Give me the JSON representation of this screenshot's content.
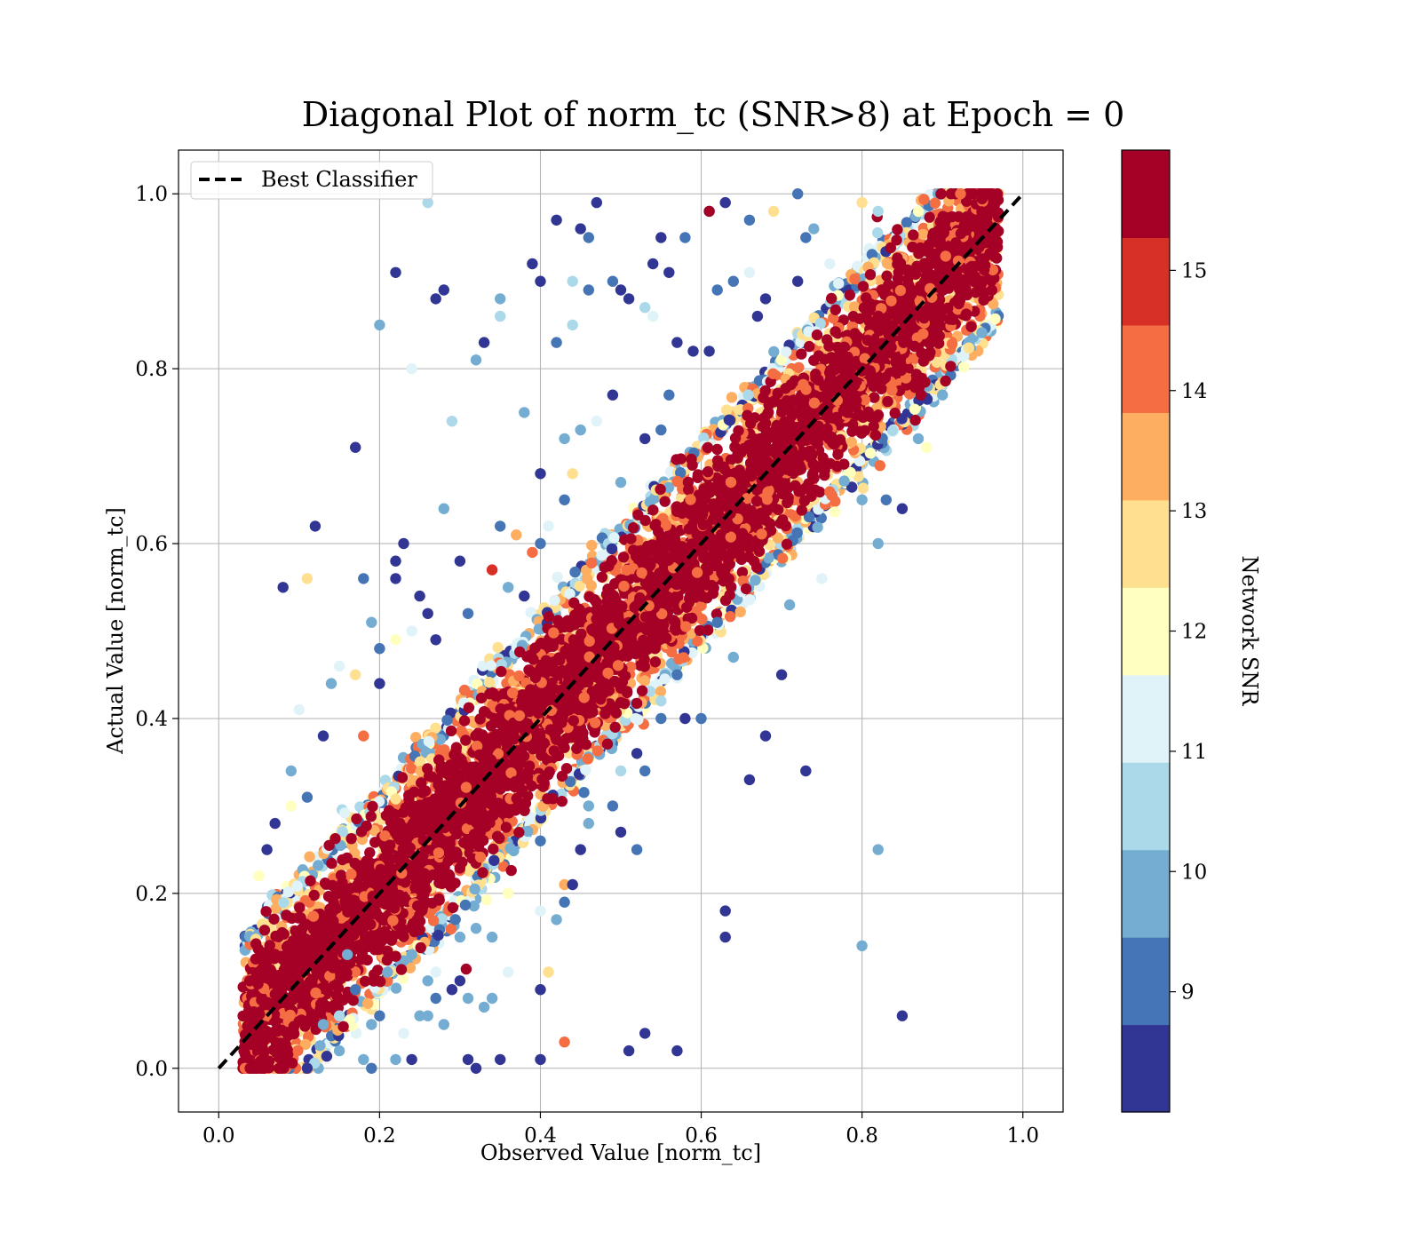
{
  "chart_data": {
    "type": "scatter",
    "title": "Diagonal Plot of norm_tc (SNR>8) at Epoch = 0",
    "xlabel": "Observed Value [norm_tc]",
    "ylabel": "Actual Value [norm_tc]",
    "xlim": [
      -0.05,
      1.05
    ],
    "ylim": [
      -0.05,
      1.05
    ],
    "x_ticks": [
      "0.0",
      "0.2",
      "0.4",
      "0.6",
      "0.8",
      "1.0"
    ],
    "y_ticks": [
      "0.0",
      "0.2",
      "0.4",
      "0.6",
      "0.8",
      "1.0"
    ],
    "x_tick_values": [
      0.0,
      0.2,
      0.4,
      0.6,
      0.8,
      1.0
    ],
    "y_tick_values": [
      0.0,
      0.2,
      0.4,
      0.6,
      0.8,
      1.0
    ],
    "grid": true,
    "legend": {
      "placement": "top-left",
      "entries": [
        "Best Classifier"
      ]
    },
    "reference_line": {
      "name": "Best Classifier",
      "x": [
        0.0,
        1.0
      ],
      "y": [
        0.0,
        1.0
      ],
      "style": "dashed",
      "color": "#000000"
    },
    "colorbar": {
      "label": "Network SNR",
      "range": [
        8,
        16
      ],
      "tick_values": [
        9,
        10,
        11,
        12,
        13,
        14,
        15
      ],
      "tick_labels": [
        "9",
        "10",
        "11",
        "12",
        "13",
        "14",
        "15"
      ],
      "colors": [
        "#313695",
        "#4575b4",
        "#74add1",
        "#abd9e9",
        "#e0f3f8",
        "#ffffbf",
        "#fee090",
        "#fdae61",
        "#f46d43",
        "#d73027",
        "#a50026"
      ]
    },
    "dense_band": {
      "x_range": [
        0.03,
        0.97
      ],
      "y_offset_halfwidth": 0.09,
      "dominant_snr": 15.5
    },
    "points": [
      [
        0.08,
        0.55,
        8.5
      ],
      [
        0.12,
        0.62,
        8.5
      ],
      [
        0.17,
        0.71,
        8.5
      ],
      [
        0.22,
        0.91,
        8.5
      ],
      [
        0.27,
        0.88,
        8.5
      ],
      [
        0.28,
        0.89,
        8.5
      ],
      [
        0.2,
        0.85,
        10
      ],
      [
        0.26,
        0.99,
        10.5
      ],
      [
        0.24,
        0.8,
        11.5
      ],
      [
        0.29,
        0.74,
        10.5
      ],
      [
        0.32,
        0.81,
        10
      ],
      [
        0.33,
        0.83,
        8.5
      ],
      [
        0.35,
        0.88,
        10
      ],
      [
        0.35,
        0.86,
        10.5
      ],
      [
        0.39,
        0.92,
        8.5
      ],
      [
        0.4,
        0.9,
        8.5
      ],
      [
        0.42,
        0.97,
        8.5
      ],
      [
        0.45,
        0.96,
        8.5
      ],
      [
        0.46,
        0.95,
        9
      ],
      [
        0.47,
        0.99,
        8.5
      ],
      [
        0.44,
        0.9,
        10.5
      ],
      [
        0.46,
        0.89,
        9
      ],
      [
        0.42,
        0.83,
        9
      ],
      [
        0.44,
        0.85,
        10.5
      ],
      [
        0.49,
        0.9,
        9
      ],
      [
        0.5,
        0.89,
        8.5
      ],
      [
        0.51,
        0.88,
        8.5
      ],
      [
        0.53,
        0.87,
        10.5
      ],
      [
        0.54,
        0.86,
        11.5
      ],
      [
        0.49,
        0.77,
        8.5
      ],
      [
        0.54,
        0.92,
        8.5
      ],
      [
        0.56,
        0.91,
        8.5
      ],
      [
        0.58,
        0.95,
        9
      ],
      [
        0.61,
        0.98,
        8.5
      ],
      [
        0.63,
        0.99,
        8.5
      ],
      [
        0.61,
        0.98,
        15.5
      ],
      [
        0.66,
        0.97,
        9
      ],
      [
        0.55,
        0.95,
        8.5
      ],
      [
        0.57,
        0.83,
        8.5
      ],
      [
        0.61,
        0.82,
        8.5
      ],
      [
        0.64,
        0.9,
        9
      ],
      [
        0.62,
        0.89,
        9
      ],
      [
        0.66,
        0.91,
        11.5
      ],
      [
        0.67,
        0.86,
        8.5
      ],
      [
        0.68,
        0.88,
        8.5
      ],
      [
        0.72,
        0.9,
        8.5
      ],
      [
        0.73,
        0.95,
        9
      ],
      [
        0.72,
        1.0,
        9
      ],
      [
        0.74,
        0.96,
        9.5
      ],
      [
        0.69,
        0.98,
        12.5
      ],
      [
        0.76,
        0.92,
        11.5
      ],
      [
        0.8,
        0.99,
        12.5
      ],
      [
        0.82,
        0.98,
        10.5
      ],
      [
        0.38,
        0.75,
        10
      ],
      [
        0.43,
        0.72,
        9.5
      ],
      [
        0.45,
        0.73,
        10
      ],
      [
        0.47,
        0.74,
        11.5
      ],
      [
        0.44,
        0.68,
        13
      ],
      [
        0.43,
        0.65,
        9
      ],
      [
        0.4,
        0.68,
        8.5
      ],
      [
        0.41,
        0.62,
        11.5
      ],
      [
        0.4,
        0.6,
        9
      ],
      [
        0.22,
        0.58,
        8.5
      ],
      [
        0.23,
        0.6,
        8.5
      ],
      [
        0.22,
        0.56,
        8.5
      ],
      [
        0.25,
        0.54,
        8.5
      ],
      [
        0.26,
        0.52,
        8.5
      ],
      [
        0.28,
        0.64,
        10
      ],
      [
        0.3,
        0.58,
        8.5
      ],
      [
        0.27,
        0.49,
        8.5
      ],
      [
        0.11,
        0.56,
        12.5
      ],
      [
        0.15,
        0.46,
        11.5
      ],
      [
        0.14,
        0.44,
        10
      ],
      [
        0.18,
        0.56,
        9
      ],
      [
        0.19,
        0.51,
        9.5
      ],
      [
        0.2,
        0.48,
        9
      ],
      [
        0.22,
        0.49,
        12
      ],
      [
        0.24,
        0.5,
        11
      ],
      [
        0.2,
        0.44,
        8.5
      ],
      [
        0.17,
        0.45,
        12.5
      ],
      [
        0.1,
        0.41,
        11
      ],
      [
        0.09,
        0.34,
        9.5
      ],
      [
        0.13,
        0.38,
        8.5
      ],
      [
        0.11,
        0.31,
        9
      ],
      [
        0.07,
        0.28,
        8.5
      ],
      [
        0.06,
        0.25,
        8.5
      ],
      [
        0.05,
        0.22,
        12
      ],
      [
        0.09,
        0.3,
        12
      ],
      [
        0.34,
        0.57,
        15
      ],
      [
        0.31,
        0.52,
        9
      ],
      [
        0.36,
        0.55,
        10
      ],
      [
        0.38,
        0.54,
        8.5
      ],
      [
        0.35,
        0.62,
        9
      ],
      [
        0.37,
        0.61,
        13.5
      ],
      [
        0.18,
        0.38,
        14
      ],
      [
        0.56,
        0.77,
        9
      ],
      [
        0.59,
        0.82,
        8.5
      ],
      [
        0.55,
        0.73,
        9
      ],
      [
        0.53,
        0.72,
        8.5
      ],
      [
        0.5,
        0.67,
        9.5
      ],
      [
        0.39,
        0.59,
        14
      ],
      [
        0.7,
        0.45,
        8.5
      ],
      [
        0.68,
        0.38,
        8.5
      ],
      [
        0.66,
        0.33,
        8.5
      ],
      [
        0.73,
        0.34,
        8.5
      ],
      [
        0.71,
        0.53,
        9.5
      ],
      [
        0.64,
        0.47,
        10
      ],
      [
        0.6,
        0.4,
        9
      ],
      [
        0.57,
        0.45,
        9
      ],
      [
        0.55,
        0.42,
        10.5
      ],
      [
        0.62,
        0.51,
        9
      ],
      [
        0.75,
        0.56,
        11
      ],
      [
        0.82,
        0.6,
        10
      ],
      [
        0.85,
        0.64,
        8.5
      ],
      [
        0.83,
        0.65,
        9
      ],
      [
        0.8,
        0.65,
        9.5
      ],
      [
        0.88,
        0.71,
        12
      ],
      [
        0.87,
        0.72,
        10
      ],
      [
        0.9,
        0.77,
        9.5
      ],
      [
        0.82,
        0.25,
        10
      ],
      [
        0.8,
        0.14,
        9.5
      ],
      [
        0.85,
        0.06,
        8.5
      ],
      [
        0.63,
        0.18,
        8.5
      ],
      [
        0.63,
        0.15,
        8.5
      ],
      [
        0.52,
        0.25,
        9
      ],
      [
        0.5,
        0.27,
        8.5
      ],
      [
        0.43,
        0.21,
        13.5
      ],
      [
        0.44,
        0.21,
        8.5
      ],
      [
        0.43,
        0.19,
        9
      ],
      [
        0.4,
        0.18,
        11
      ],
      [
        0.42,
        0.17,
        9.5
      ],
      [
        0.36,
        0.2,
        12
      ],
      [
        0.34,
        0.15,
        9.5
      ],
      [
        0.3,
        0.15,
        9.5
      ],
      [
        0.32,
        0.16,
        10
      ],
      [
        0.45,
        0.25,
        8.5
      ],
      [
        0.49,
        0.3,
        9
      ],
      [
        0.46,
        0.3,
        9.5
      ],
      [
        0.4,
        0.26,
        9
      ],
      [
        0.41,
        0.11,
        12.5
      ],
      [
        0.4,
        0.09,
        8.5
      ],
      [
        0.43,
        0.03,
        14
      ],
      [
        0.4,
        0.01,
        8.5
      ],
      [
        0.35,
        0.01,
        8.5
      ],
      [
        0.32,
        0.0,
        8.5
      ],
      [
        0.31,
        0.01,
        8.5
      ],
      [
        0.29,
        0.09,
        8.5
      ],
      [
        0.26,
        0.1,
        9.5
      ],
      [
        0.27,
        0.08,
        9
      ],
      [
        0.28,
        0.05,
        9.5
      ],
      [
        0.25,
        0.06,
        9.5
      ],
      [
        0.23,
        0.04,
        11
      ],
      [
        0.24,
        0.01,
        8.5
      ],
      [
        0.22,
        0.01,
        9.5
      ],
      [
        0.36,
        0.11,
        11
      ],
      [
        0.34,
        0.08,
        9.5
      ],
      [
        0.33,
        0.07,
        10
      ],
      [
        0.3,
        0.1,
        8.5
      ],
      [
        0.31,
        0.08,
        10
      ],
      [
        0.51,
        0.02,
        8.5
      ],
      [
        0.53,
        0.04,
        8.5
      ],
      [
        0.57,
        0.02,
        8.5
      ],
      [
        0.2,
        0.06,
        9
      ],
      [
        0.18,
        0.01,
        10
      ],
      [
        0.19,
        0.0,
        9
      ],
      [
        0.15,
        0.02,
        10
      ],
      [
        0.21,
        0.11,
        10
      ],
      [
        0.13,
        0.05,
        9.5
      ],
      [
        0.11,
        0.0,
        8.5
      ],
      [
        0.15,
        0.06,
        10.5
      ],
      [
        0.17,
        0.09,
        9
      ],
      [
        0.19,
        0.05,
        10
      ],
      [
        0.16,
        0.13,
        9.5
      ],
      [
        0.24,
        0.13,
        10
      ],
      [
        0.27,
        0.11,
        11.5
      ],
      [
        0.26,
        0.06,
        10
      ],
      [
        0.46,
        0.28,
        9.5
      ],
      [
        0.52,
        0.36,
        8.5
      ],
      [
        0.53,
        0.34,
        9
      ],
      [
        0.5,
        0.34,
        10.5
      ],
      [
        0.55,
        0.4,
        9
      ],
      [
        0.58,
        0.4,
        8.5
      ]
    ]
  }
}
